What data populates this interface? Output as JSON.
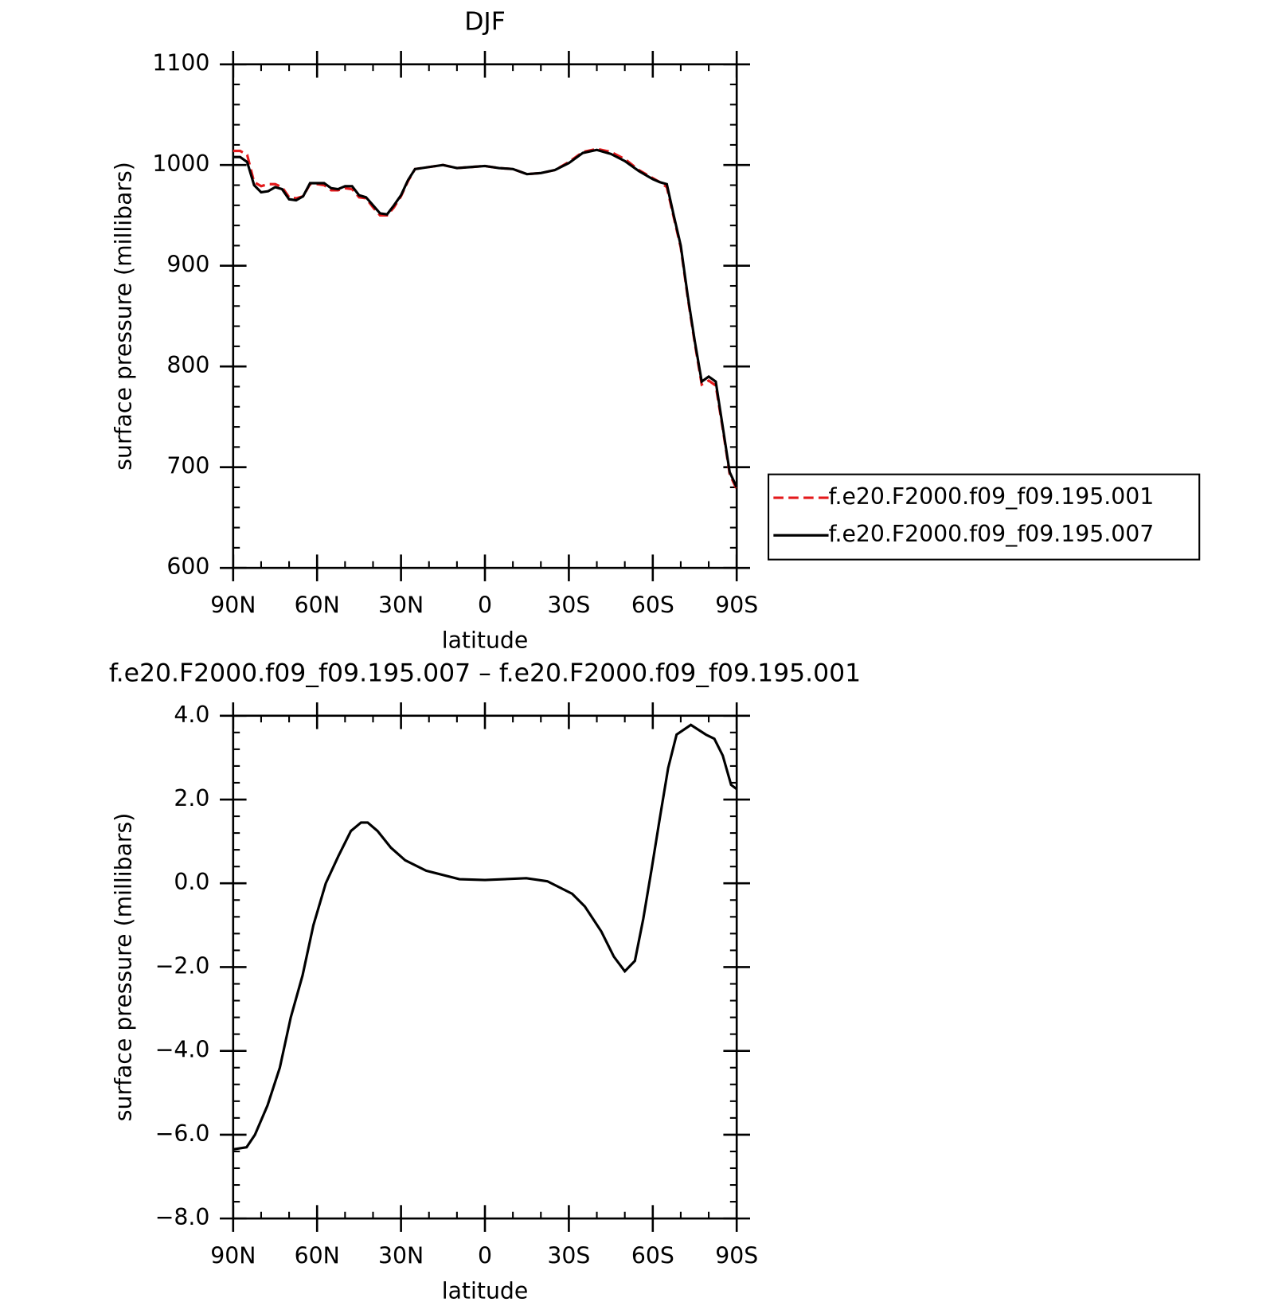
{
  "chart_data": [
    {
      "type": "line",
      "title": "DJF",
      "x_label": "latitude",
      "y_label": "surface pressure (millibars)",
      "x": [
        90,
        87.5,
        85,
        82.5,
        80,
        77.5,
        75,
        72.5,
        70,
        67.5,
        65,
        62.5,
        60,
        57.5,
        55,
        52.5,
        50,
        47.5,
        45,
        42.5,
        40,
        37.5,
        35,
        32.5,
        30,
        27.5,
        25,
        20,
        15,
        10,
        5,
        0,
        -5,
        -10,
        -15,
        -20,
        -25,
        -30,
        -35,
        -40,
        -45,
        -50,
        -55,
        -60,
        -62.5,
        -65,
        -67.5,
        -70,
        -72.5,
        -75,
        -77.5,
        -80,
        -82.5,
        -85,
        -87.5,
        -90
      ],
      "series": [
        {
          "name": "f.e20.F2000.f09_f09.195.001",
          "color": "#e41a1c",
          "dash": "dashed",
          "values": [
            1014,
            1014,
            1010,
            983,
            979,
            981,
            981,
            978,
            968,
            967,
            969,
            981,
            981,
            980,
            975,
            975,
            977,
            976,
            968,
            967,
            958,
            950,
            950,
            958,
            969,
            984,
            996,
            998,
            1000,
            997,
            998,
            999,
            997,
            996,
            991,
            992,
            995,
            1003,
            1013,
            1016,
            1013,
            1006,
            995,
            987,
            983,
            978,
            948,
            918,
            868,
            823,
            782,
            786,
            781,
            738,
            693,
            678
          ]
        },
        {
          "name": "f.e20.F2000.f09_f09.195.007",
          "color": "#000000",
          "dash": "solid",
          "values": [
            1008,
            1008,
            1003,
            980,
            973,
            974,
            978,
            976,
            966,
            965,
            969,
            982,
            982,
            982,
            977,
            976,
            979,
            979,
            970,
            968,
            960,
            952,
            951,
            960,
            970,
            985,
            996,
            998,
            1000,
            997,
            998,
            999,
            997,
            996,
            991,
            992,
            995,
            1002,
            1012,
            1015,
            1011,
            1004,
            994,
            986,
            983,
            981,
            950,
            920,
            870,
            825,
            785,
            790,
            785,
            740,
            695,
            680
          ]
        }
      ],
      "xlim": [
        90,
        -90
      ],
      "xticks": [
        {
          "value": 90,
          "label": "90N"
        },
        {
          "value": 60,
          "label": "60N"
        },
        {
          "value": 30,
          "label": "30N"
        },
        0,
        {
          "value": -30,
          "label": "30S"
        },
        {
          "value": -60,
          "label": "60S"
        },
        {
          "value": -90,
          "label": "90S"
        }
      ],
      "ylim": [
        600,
        1100
      ],
      "yticks": [
        600,
        700,
        800,
        900,
        1000,
        1100
      ],
      "legend": "outside-right",
      "grid": false
    },
    {
      "type": "line",
      "title": "f.e20.F2000.f09_f09.195.007 – f.e20.F2000.f09_f09.195.001",
      "x_label": "latitude",
      "y_label": "surface pressure (millibars)",
      "x": [
        90,
        85.2,
        82.2,
        77.7,
        73.3,
        69.4,
        65.2,
        61.3,
        56.9,
        52.4,
        47.9,
        44.3,
        41.9,
        38.4,
        33.6,
        28.5,
        21.0,
        9.1,
        0,
        -14.8,
        -22.3,
        -31.2,
        -35.7,
        -41.6,
        -46.1,
        -50,
        -53.6,
        -56.6,
        -59.6,
        -62.5,
        -65.5,
        -68.5,
        -73.6,
        -79,
        -82,
        -85,
        -88,
        -90
      ],
      "series": [
        {
          "name": null,
          "color": "#000000",
          "dash": "solid",
          "values": [
            -6.35,
            -6.3,
            -6.0,
            -5.3,
            -4.4,
            -3.2,
            -2.2,
            -1.0,
            0.0,
            0.65,
            1.25,
            1.45,
            1.45,
            1.25,
            0.85,
            0.55,
            0.3,
            0.1,
            0.08,
            0.12,
            0.05,
            -0.25,
            -0.55,
            -1.15,
            -1.75,
            -2.1,
            -1.85,
            -0.85,
            0.35,
            1.55,
            2.75,
            3.55,
            3.78,
            3.55,
            3.45,
            3.05,
            2.35,
            2.25
          ]
        }
      ],
      "xlim": [
        90,
        -90
      ],
      "xticks": [
        {
          "value": 90,
          "label": "90N"
        },
        {
          "value": 60,
          "label": "60N"
        },
        {
          "value": 30,
          "label": "30N"
        },
        0,
        {
          "value": -30,
          "label": "30S"
        },
        {
          "value": -60,
          "label": "60S"
        },
        {
          "value": -90,
          "label": "90S"
        }
      ],
      "ylim": [
        -8,
        4
      ],
      "yticks": [
        {
          "value": -8,
          "label": "−8.0"
        },
        {
          "value": -6,
          "label": "−6.0"
        },
        {
          "value": -4,
          "label": "−4.0"
        },
        {
          "value": -2,
          "label": "−2.0"
        },
        {
          "value": 0,
          "label": "0.0"
        },
        {
          "value": 2,
          "label": "2.0"
        },
        {
          "value": 4,
          "label": "4.0"
        }
      ],
      "grid": false
    }
  ]
}
